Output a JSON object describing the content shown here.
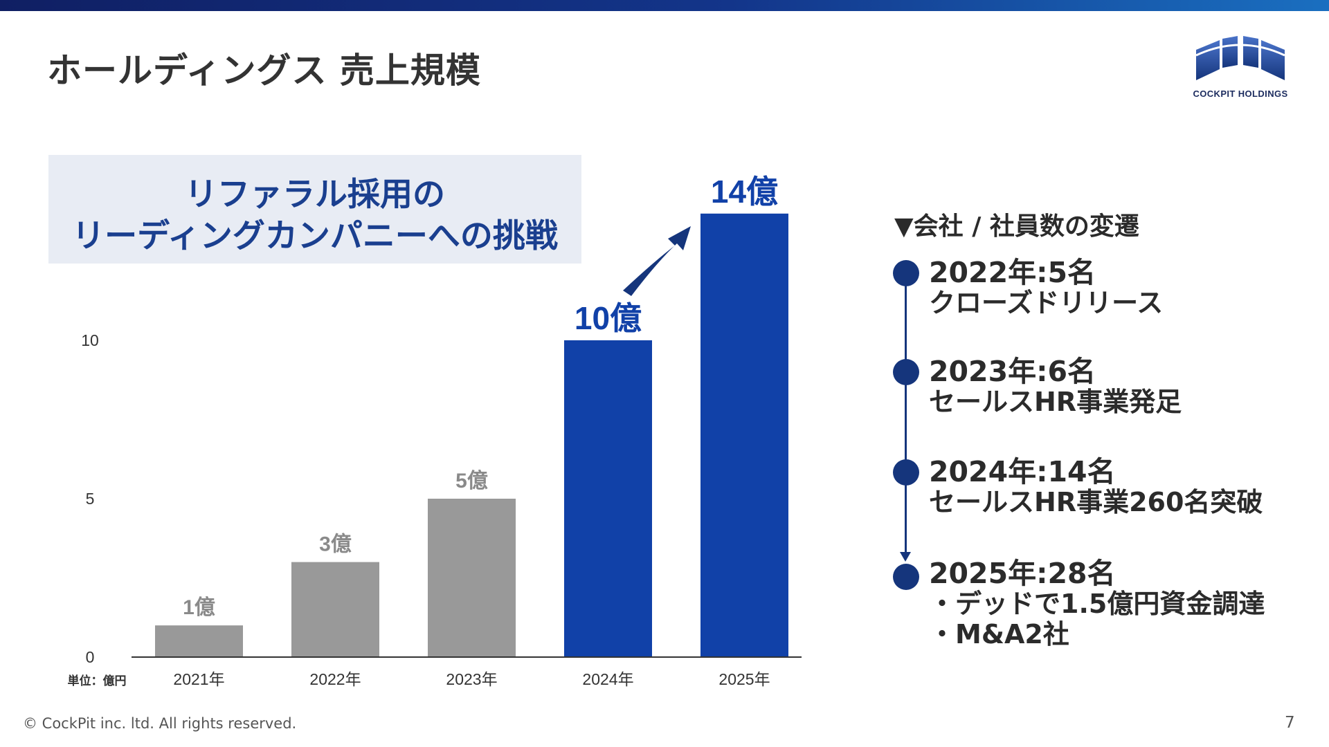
{
  "page": {
    "title": "ホールディングス 売上規模",
    "logo_text": "COCKPIT HOLDINGS",
    "copyright": "© CockPit inc. ltd. All rights reserved.",
    "page_number": "7"
  },
  "headline": {
    "line1": "リファラル採用の",
    "line2": "リーディングカンパニーへの挑戦"
  },
  "chart_data": {
    "type": "bar",
    "categories": [
      "2021年",
      "2022年",
      "2023年",
      "2024年",
      "2025年"
    ],
    "values": [
      1,
      3,
      5,
      10,
      14
    ],
    "value_labels": [
      "1億",
      "3億",
      "5億",
      "10億",
      "14億"
    ],
    "highlighted": [
      false,
      false,
      false,
      true,
      true
    ],
    "yticks": [
      0,
      5,
      10
    ],
    "ylim": [
      0,
      14
    ],
    "unit_label": "単位：億円",
    "grid": false,
    "colors": {
      "past": "#999999",
      "highlight": "#1141a8",
      "axis": "#333333"
    }
  },
  "timeline": {
    "heading": "▼会社 / 社員数の変遷",
    "entries": [
      {
        "date": "2022年:5名",
        "lines": [
          "クローズドリリース"
        ]
      },
      {
        "date": "2023年:6名",
        "lines": [
          "セールスHR事業発足"
        ]
      },
      {
        "date": "2024年:14名",
        "lines": [
          "セールスHR事業260名突破"
        ]
      },
      {
        "date": "2025年:28名",
        "lines": [
          "・デッドで1.5億円資金調達",
          "・M&A2社"
        ]
      }
    ]
  }
}
